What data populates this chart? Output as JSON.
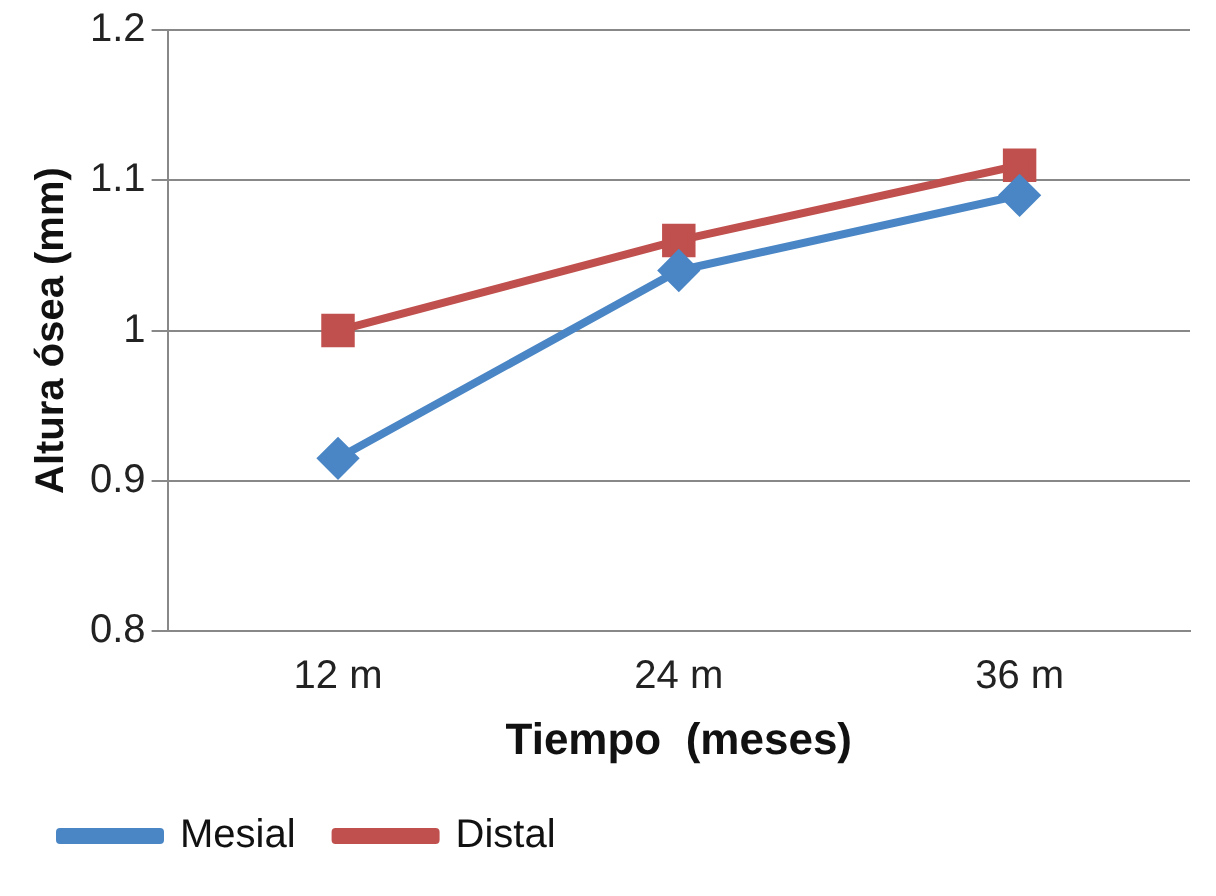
{
  "chart_data": {
    "type": "line",
    "xlabel": "Tiempo  (meses)",
    "ylabel": "Altura ósea (mm)",
    "categories": [
      "12 m",
      "24 m",
      "36 m"
    ],
    "series": [
      {
        "name": "Mesial",
        "color": "#4a86c5",
        "values": [
          0.915,
          1.04,
          1.09
        ],
        "marker": "diamond"
      },
      {
        "name": "Distal",
        "color": "#c0504d",
        "values": [
          1.0,
          1.06,
          1.11
        ],
        "marker": "square"
      }
    ],
    "ylim": [
      0.8,
      1.2
    ],
    "yticks": [
      0.8,
      0.9,
      1,
      1.1,
      1.2
    ],
    "grid": "y",
    "legend": "bottom"
  }
}
